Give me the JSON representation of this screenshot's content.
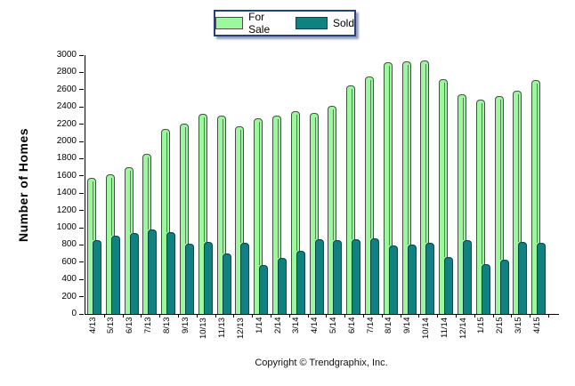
{
  "legend": {
    "for_sale": "For Sale",
    "sold": "Sold"
  },
  "footer": {
    "copyright": "Copyright © Trendgraphix, Inc."
  },
  "colors": {
    "for_sale_fill": "#9cf89c",
    "for_sale_border": "#4c4c4c",
    "sold_fill": "#0f8181",
    "sold_border": "#0b4348",
    "legend_border": "#24417c",
    "axis": "#000000"
  },
  "chart_data": {
    "type": "bar",
    "title": "",
    "xlabel": "",
    "ylabel": "Number of Homes",
    "ylim": [
      0,
      3000
    ],
    "ytick_step": 200,
    "grid": false,
    "legend_position": "top-center",
    "categories": [
      "4/13",
      "5/13",
      "6/13",
      "7/13",
      "8/13",
      "9/13",
      "10/13",
      "11/13",
      "12/13",
      "1/14",
      "2/14",
      "3/14",
      "4/14",
      "5/14",
      "6/14",
      "7/14",
      "8/14",
      "9/14",
      "10/14",
      "11/14",
      "12/14",
      "1/15",
      "2/15",
      "3/15",
      "4/15"
    ],
    "series": [
      {
        "name": "For Sale",
        "color": "#9cf89c",
        "values": [
          1580,
          1620,
          1700,
          1860,
          2145,
          2210,
          2320,
          2300,
          2175,
          2270,
          2300,
          2355,
          2325,
          2415,
          2650,
          2755,
          2915,
          2930,
          2935,
          2720,
          2550,
          2480,
          2525,
          2585,
          2710
        ]
      },
      {
        "name": "Sold",
        "color": "#0f8181",
        "values": [
          855,
          905,
          940,
          980,
          950,
          810,
          840,
          700,
          830,
          570,
          645,
          730,
          865,
          860,
          865,
          875,
          795,
          800,
          820,
          665,
          860,
          580,
          630,
          840,
          820
        ]
      }
    ]
  }
}
